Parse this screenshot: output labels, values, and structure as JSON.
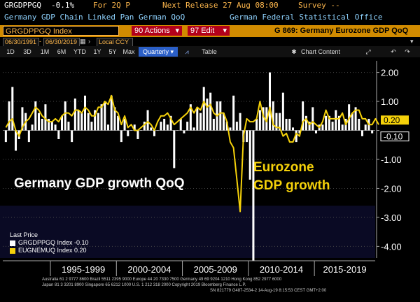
{
  "header": {
    "ticker": "GRGDPPGQ",
    "change": "-0.1%",
    "period": "For 2Q P",
    "next_release": "Next Release 27 Aug 08:00",
    "survey": "Survey --",
    "description": "Germany GDP Chain Linked Pan German QoQ",
    "source": "German Federal Statistical Office"
  },
  "toolbar": {
    "index_label": "GRGDPPGQ Index",
    "actions_label": "90 Actions",
    "edit_label": "97 Edit",
    "title": "G 869: Germany Eurozone GDP QoQ"
  },
  "dates": {
    "start": "06/30/1991",
    "end": "06/30/2019",
    "currency": "Local CCY"
  },
  "ranges": {
    "items": [
      "1D",
      "3D",
      "1M",
      "6M",
      "YTD",
      "1Y",
      "5Y",
      "Max"
    ],
    "frequency": "Quarterly",
    "table_label": "Table",
    "chart_content_label": "Chart Content"
  },
  "legend": {
    "title": "Last Price",
    "items": [
      {
        "label": "GRGDPPGQ Index -0.10",
        "color": "#ffffff"
      },
      {
        "label": "EUGNEMUQ Index 0.20",
        "color": "#f5d10a"
      }
    ]
  },
  "footer": {
    "line1": "Australia 61 2 9777 8600 Brazil 5511 2395 9000 Europe 44 20 7330 7500 Germany 49 69 9204 1210 Hong Kong 852 2977 6000",
    "line2": "Japan 81 3 3201 8900     Singapore 65 6212 1000     U.S. 1 212 318 2000     Copyright 2019 Bloomberg Finance L.P.",
    "line3": "SN 821779 G487-2534-2 14-Aug-19  8:15:53 CEST GMT+2:00"
  },
  "chart_data": {
    "type": "bar",
    "x_tick_labels": [
      "1995-1999",
      "2000-2004",
      "2005-2009",
      "2010-2014",
      "2015-2019"
    ],
    "y_ticks": [
      2.0,
      1.0,
      0.0,
      -1.0,
      -2.0,
      -3.0,
      -4.0
    ],
    "y_tick_labels": [
      "2.00",
      "1.00",
      "",
      "-1.00",
      "-2.00",
      "-3.00",
      "-4.00"
    ],
    "ylim": [
      -4.4,
      2.4
    ],
    "x_start_year": 1991.5,
    "annotations": [
      {
        "text": "Germany GDP growth QoQ",
        "color": "#ffffff"
      },
      {
        "text": "Eurozone",
        "color": "#f5d10a"
      },
      {
        "text": "GDP growth",
        "color": "#f5d10a"
      }
    ],
    "last_value_labels": [
      {
        "text": "0.20",
        "value": 0.2,
        "color": "#f5d10a"
      },
      {
        "text": "-0.10",
        "value": -0.1,
        "color": "#ffffff"
      }
    ],
    "series": [
      {
        "name": "GRGDPPGQ Index",
        "kind": "bar",
        "color": "#ffffff",
        "values": [
          -0.4,
          1.0,
          1.5,
          -0.7,
          -0.3,
          0.8,
          0.6,
          -0.4,
          0.2,
          1.0,
          0.6,
          0.4,
          0.9,
          0.4,
          0.3,
          0.2,
          -0.3,
          0.5,
          1.0,
          0.3,
          -0.4,
          1.1,
          0.7,
          0.6,
          1.2,
          0.6,
          0.3,
          0.7,
          0.6,
          0.9,
          1.0,
          0.2,
          1.2,
          0.8,
          0.5,
          -0.4,
          0.4,
          -0.2,
          0.0,
          0.2,
          -0.3,
          0.0,
          0.3,
          0.7,
          0.1,
          -0.2,
          0.0,
          0.3,
          0.4,
          0.2,
          0.5,
          -1.3,
          0.0,
          0.4,
          -0.1,
          0.3,
          0.9,
          0.1,
          0.8,
          0.6,
          1.5,
          1.1,
          1.3,
          0.4,
          1.0,
          1.0,
          0.6,
          0.3,
          0.1,
          1.2,
          0.3,
          0.6,
          -0.4,
          -0.4,
          -1.7,
          -4.5,
          0.4,
          0.7,
          0.8,
          0.8,
          2.0,
          1.0,
          0.6,
          0.6,
          1.3,
          0.4,
          0.4,
          0.1,
          -0.4,
          -0.1,
          1.0,
          0.5,
          0.3,
          0.8,
          -0.1,
          0.2,
          0.2,
          0.5,
          0.5,
          0.3,
          0.7,
          0.5,
          0.2,
          0.4,
          0.9,
          0.6,
          0.8,
          0.4,
          -0.2,
          0.2,
          0.4,
          -0.1
        ],
        "last_label": "-0.10"
      },
      {
        "name": "EUGNEMUQ Index",
        "kind": "line",
        "color": "#f5d10a",
        "values": [
          0.1,
          0.3,
          0.4,
          0.0,
          -0.2,
          0.1,
          0.3,
          0.4,
          0.6,
          0.8,
          0.7,
          0.5,
          0.4,
          0.3,
          0.3,
          0.4,
          0.3,
          0.5,
          0.6,
          0.6,
          0.5,
          0.7,
          0.7,
          0.6,
          0.8,
          0.7,
          0.5,
          0.5,
          0.8,
          0.8,
          1.0,
          0.9,
          1.2,
          0.7,
          0.6,
          0.2,
          0.5,
          0.1,
          0.2,
          0.0,
          0.0,
          0.1,
          0.2,
          0.3,
          0.2,
          0.0,
          0.3,
          0.5,
          0.5,
          0.6,
          0.4,
          0.2,
          0.3,
          0.4,
          0.5,
          0.6,
          0.8,
          0.6,
          0.8,
          0.7,
          1.0,
          0.8,
          0.9,
          0.6,
          0.5,
          0.6,
          0.6,
          0.3,
          -0.4,
          -0.6,
          -1.7,
          -2.8,
          -0.2,
          0.4,
          0.3,
          0.3,
          0.4,
          1.0,
          0.5,
          0.3,
          0.8,
          0.2,
          0.1,
          0.1,
          -0.2,
          -0.1,
          -0.4,
          -0.4,
          -0.1,
          -0.2,
          0.3,
          0.4,
          0.2,
          0.3,
          0.2,
          0.1,
          0.3,
          0.7,
          0.4,
          0.4,
          0.4,
          0.4,
          0.6,
          0.2,
          0.4,
          0.6,
          0.7,
          0.7,
          0.4,
          0.4,
          0.2,
          0.2,
          0.4,
          0.2
        ],
        "last_label": "0.20"
      }
    ]
  }
}
